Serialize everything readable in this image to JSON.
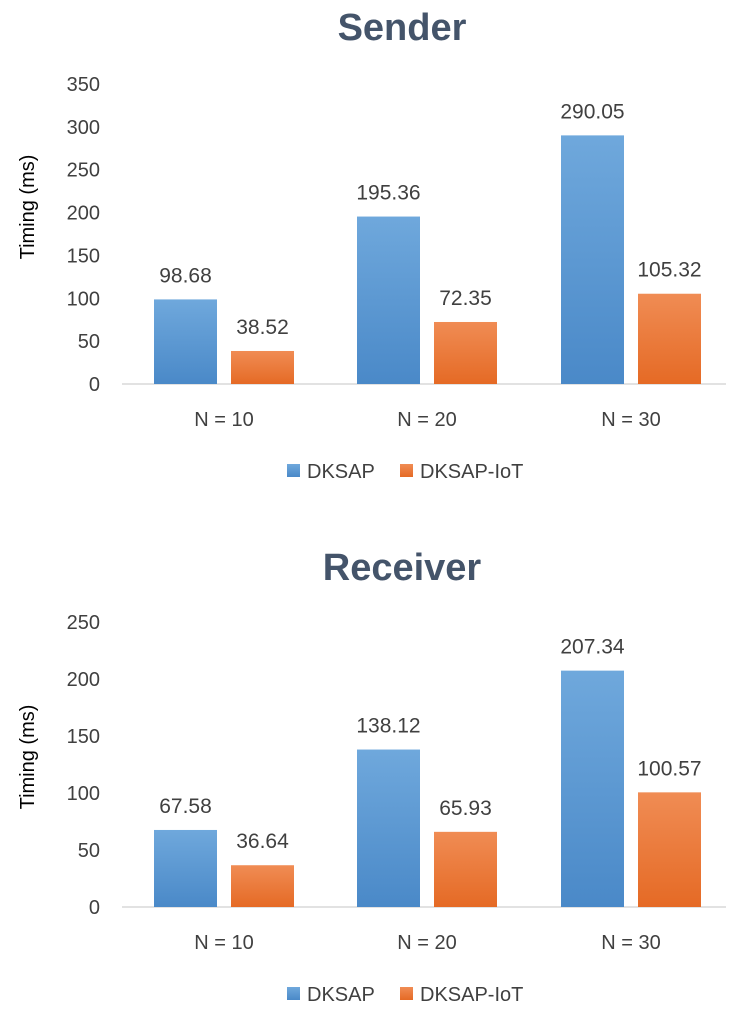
{
  "chart_data": [
    {
      "type": "bar",
      "title": "Sender",
      "xlabel": "",
      "ylabel": "Timing (ms)",
      "categories": [
        "N = 10",
        "N = 20",
        "N = 30"
      ],
      "ylim": [
        0,
        350
      ],
      "yticks": [
        0,
        50,
        100,
        150,
        200,
        250,
        300,
        350
      ],
      "grid": false,
      "legend": "bottom",
      "series": [
        {
          "name": "DKSAP",
          "values": [
            98.68,
            195.36,
            290.05
          ],
          "labels": [
            "98.68",
            "195.36",
            "290.05"
          ],
          "color": "#5b9bd5"
        },
        {
          "name": "DKSAP-IoT",
          "values": [
            38.52,
            72.35,
            105.32
          ],
          "labels": [
            "38.52",
            "72.35",
            "105.32"
          ],
          "color": "#ed7d31"
        }
      ]
    },
    {
      "type": "bar",
      "title": "Receiver",
      "xlabel": "",
      "ylabel": "Timing (ms)",
      "categories": [
        "N = 10",
        "N = 20",
        "N = 30"
      ],
      "ylim": [
        0,
        250
      ],
      "yticks": [
        0,
        50,
        100,
        150,
        200,
        250
      ],
      "grid": false,
      "legend": "bottom",
      "series": [
        {
          "name": "DKSAP",
          "values": [
            67.58,
            138.12,
            207.34
          ],
          "labels": [
            "67.58",
            "138.12",
            "207.34"
          ],
          "color": "#5b9bd5"
        },
        {
          "name": "DKSAP-IoT",
          "values": [
            36.64,
            65.93,
            100.57
          ],
          "labels": [
            "36.64",
            "65.93",
            "100.57"
          ],
          "color": "#ed7d31"
        }
      ]
    }
  ]
}
